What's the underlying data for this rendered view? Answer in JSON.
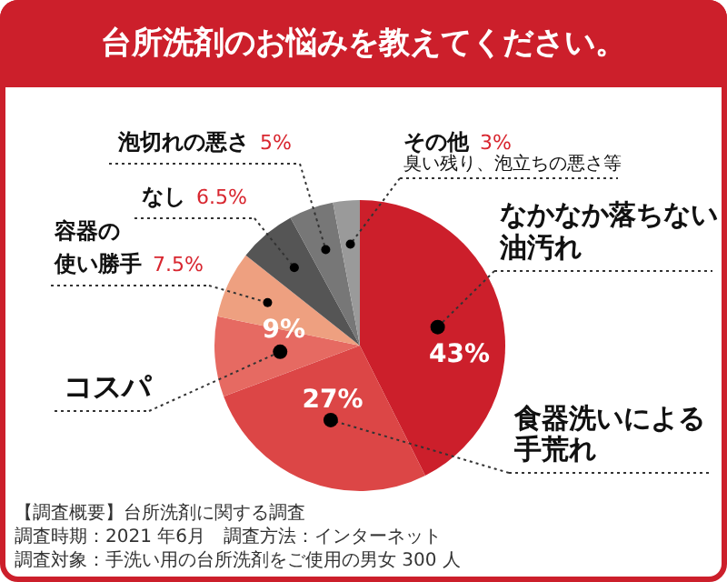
{
  "chart_data": {
    "type": "pie",
    "title": "台所洗剤のお悩みを教えてください。",
    "categories": [
      "なかなか落ちない油汚れ",
      "食器洗いによる手荒れ",
      "コスパ",
      "容器の使い勝手",
      "なし",
      "泡切れの悪さ",
      "その他"
    ],
    "values": [
      43,
      27,
      9,
      7.5,
      6.5,
      5,
      3
    ],
    "colors": [
      "#cc1f2b",
      "#dc4646",
      "#e66a62",
      "#eea080",
      "#555555",
      "#777777",
      "#9a9a9a"
    ],
    "value_labels": [
      "43%",
      "27%",
      "9%",
      "7.5%",
      "6.5%",
      "5%",
      "3%"
    ],
    "legend": false,
    "annotations": [
      {
        "text": "臭い残り、泡立ちの悪さ等",
        "x": "その他"
      },
      "【調査概要】台所洗剤に関する調査",
      "調査時期：2021 年6月　調査方法：インターネット",
      "調査対象：手洗い用の台所洗剤をご使用の男女 300 人"
    ]
  }
}
